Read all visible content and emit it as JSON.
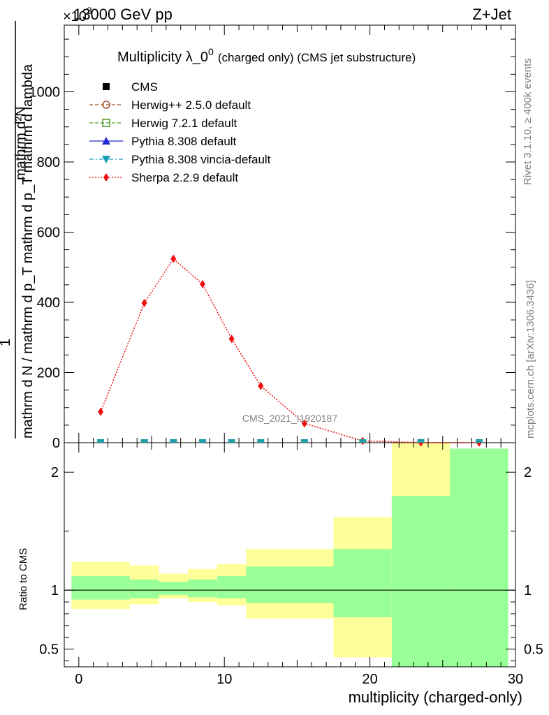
{
  "header": {
    "left": "13000 GeV pp",
    "right": "Z+Jet",
    "exponent_base": "×10",
    "exponent_power": "3"
  },
  "title": {
    "main": "Multiplicity λ_0",
    "superscript": "0",
    "suffix": "(charged only) (CMS jet substructure)"
  },
  "side_labels": {
    "rivet": "Rivet 3.1.10, ≥ 400k events",
    "mcplots": "mcplots.cern.ch [arXiv:1306.3436]"
  },
  "watermark": "CMS_2021_I1920187",
  "ylabel": {
    "numerator_one": "1",
    "denominator": "mathrm d N / mathrm d p_T mathrm d p_T mathrm d lambda",
    "numerator": "mathrm d²N"
  },
  "ratio_ylabel": "Ratio to CMS",
  "legend": [
    {
      "label": "CMS",
      "color": "#000000",
      "marker": "square-filled",
      "line": "none"
    },
    {
      "label": "Herwig++ 2.5.0 default",
      "color": "#a0522d",
      "marker": "circle-open",
      "line": "dashed"
    },
    {
      "label": "Herwig 7.2.1 default",
      "color": "#4b9a22",
      "marker": "square-open",
      "line": "dashed"
    },
    {
      "label": "Pythia 8.308 default",
      "color": "#1f2bd1",
      "marker": "triangle-up",
      "line": "solid"
    },
    {
      "label": "Pythia 8.308 vincia-default",
      "color": "#17a0b5",
      "marker": "triangle-down",
      "line": "dashdot"
    },
    {
      "label": "Sherpa 2.2.9 default",
      "color": "#ee1111",
      "marker": "diamond",
      "line": "dotted"
    }
  ],
  "colors": {
    "sherpa": "#ee1111",
    "band_outer": "#ffff99",
    "band_inner": "#99ff99",
    "marker_fill": "#1fa0a8"
  },
  "chart_data": {
    "type": "line",
    "xlabel": "multiplicity (charged-only)",
    "x_ticks": [
      "0",
      "10",
      "20",
      "30"
    ],
    "xlim": [
      -1,
      30
    ],
    "main": {
      "ylim": [
        0,
        1190
      ],
      "y_ticks": [
        "0",
        "200",
        "400",
        "600",
        "800",
        "1000"
      ],
      "y_tick_values": [
        0,
        200,
        400,
        600,
        800,
        1000
      ],
      "y_scale_note": "×10^3",
      "sherpa_x": [
        1.5,
        4.5,
        6.5,
        8.5,
        10.5,
        12.5,
        15.5,
        19.5,
        23.5,
        27.5
      ],
      "sherpa_y": [
        88,
        398,
        524,
        452,
        296,
        162,
        55,
        5,
        0.5,
        0.1
      ],
      "generator_marker_x": [
        1.5,
        4.5,
        6.5,
        8.5,
        10.5,
        12.5,
        15.5,
        19.5,
        23.5,
        27.5
      ],
      "generator_marker_y": 0
    },
    "ratio": {
      "ylim": [
        0.35,
        2.25
      ],
      "y_ticks": [
        "0.5",
        "1",
        "2"
      ],
      "y_tick_values": [
        0.5,
        1,
        2
      ],
      "bins": [
        {
          "x0": -0.5,
          "x1": 3.5,
          "outer": [
            0.84,
            1.24
          ],
          "inner": [
            0.92,
            1.12
          ]
        },
        {
          "x0": 3.5,
          "x1": 5.5,
          "outer": [
            0.88,
            1.21
          ],
          "inner": [
            0.93,
            1.09
          ]
        },
        {
          "x0": 5.5,
          "x1": 7.5,
          "outer": [
            0.93,
            1.14
          ],
          "inner": [
            0.96,
            1.07
          ]
        },
        {
          "x0": 7.5,
          "x1": 9.5,
          "outer": [
            0.9,
            1.18
          ],
          "inner": [
            0.94,
            1.09
          ]
        },
        {
          "x0": 9.5,
          "x1": 11.5,
          "outer": [
            0.87,
            1.22
          ],
          "inner": [
            0.93,
            1.12
          ]
        },
        {
          "x0": 11.5,
          "x1": 14.5,
          "outer": [
            0.76,
            1.35
          ],
          "inner": [
            0.89,
            1.2
          ]
        },
        {
          "x0": 14.5,
          "x1": 17.5,
          "outer": [
            0.76,
            1.35
          ],
          "inner": [
            0.89,
            1.2
          ]
        },
        {
          "x0": 17.5,
          "x1": 21.5,
          "outer": [
            0.43,
            1.62
          ],
          "inner": [
            0.77,
            1.35
          ]
        },
        {
          "x0": 21.5,
          "x1": 25.5,
          "outer": [
            0.33,
            2.4
          ],
          "inner": [
            0.33,
            1.8
          ]
        },
        {
          "x0": 25.5,
          "x1": 29.5,
          "outer": [
            0.33,
            2.2
          ],
          "inner": [
            0.33,
            2.2
          ]
        }
      ]
    }
  }
}
